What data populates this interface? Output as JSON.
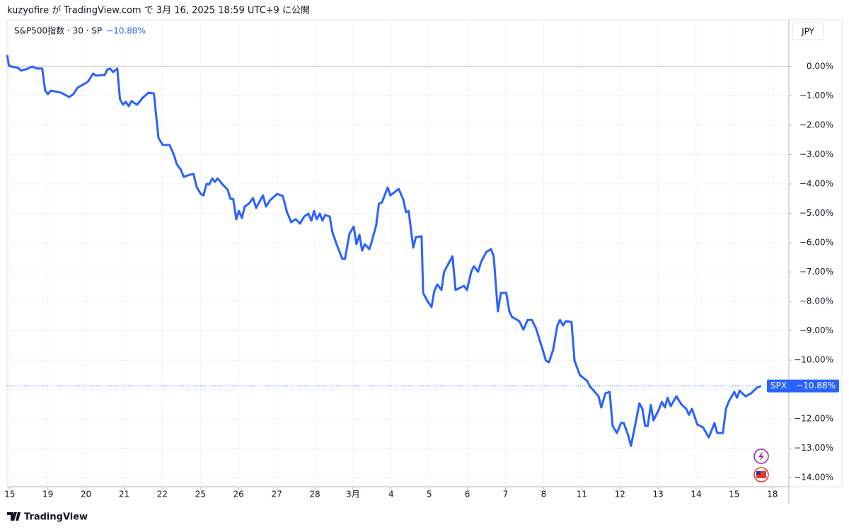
{
  "header": "kuzyofire が TradingView.com で 3月 16, 2025 18:59 UTC+9 に公開",
  "footer": "TradingView",
  "chart_data": {
    "type": "line",
    "legend": "S&P500指数 · 30 · SP",
    "currency": "JPY",
    "symbol": "SPX",
    "last_value": -10.88,
    "last_value_label": "−10.88%",
    "grid": true,
    "xlim": [
      -0.07,
      20.43
    ],
    "ylim": [
      -14.31,
      1.59
    ],
    "xticks": [
      {
        "value": 0,
        "label": "15"
      },
      {
        "value": 1,
        "label": "19"
      },
      {
        "value": 2,
        "label": "20"
      },
      {
        "value": 3,
        "label": "21"
      },
      {
        "value": 4,
        "label": "22"
      },
      {
        "value": 5,
        "label": "25"
      },
      {
        "value": 6,
        "label": "26"
      },
      {
        "value": 7,
        "label": "27"
      },
      {
        "value": 8,
        "label": "28"
      },
      {
        "value": 9,
        "label": "3月"
      },
      {
        "value": 10,
        "label": "4"
      },
      {
        "value": 11,
        "label": "5"
      },
      {
        "value": 12,
        "label": "6"
      },
      {
        "value": 13,
        "label": "7"
      },
      {
        "value": 14,
        "label": "8"
      },
      {
        "value": 15,
        "label": "11"
      },
      {
        "value": 16,
        "label": "12"
      },
      {
        "value": 17,
        "label": "13"
      },
      {
        "value": 18,
        "label": "14"
      },
      {
        "value": 19,
        "label": "15"
      },
      {
        "value": 20,
        "label": "18"
      }
    ],
    "yticks": [
      {
        "value": 0,
        "label": "0.00%"
      },
      {
        "value": -1,
        "label": "−1.00%"
      },
      {
        "value": -2,
        "label": "−2.00%"
      },
      {
        "value": -3,
        "label": "−3.00%"
      },
      {
        "value": -4,
        "label": "−4.00%"
      },
      {
        "value": -5,
        "label": "−5.00%"
      },
      {
        "value": -6,
        "label": "−6.00%"
      },
      {
        "value": -7,
        "label": "−7.00%"
      },
      {
        "value": -8,
        "label": "−8.00%"
      },
      {
        "value": -9,
        "label": "−9.00%"
      },
      {
        "value": -10,
        "label": "−10.00%"
      },
      {
        "value": -11,
        "label": "−11.00%"
      },
      {
        "value": -12,
        "label": "−12.00%"
      },
      {
        "value": -13,
        "label": "−13.00%"
      },
      {
        "value": -14,
        "label": "−14.00%"
      }
    ],
    "series": [
      {
        "name": "SPX",
        "color": "#2962ff",
        "x": [
          -0.07,
          -0.02,
          0.22,
          0.3,
          0.48,
          0.59,
          0.71,
          0.85,
          0.93,
          1.0,
          1.08,
          1.34,
          1.56,
          1.67,
          1.78,
          2.04,
          2.19,
          2.26,
          2.49,
          2.56,
          2.63,
          2.71,
          2.82,
          2.89,
          2.97,
          3.04,
          3.12,
          3.19,
          3.34,
          3.49,
          3.64,
          3.78,
          3.9,
          4.01,
          4.19,
          4.3,
          4.38,
          4.49,
          4.56,
          4.71,
          4.82,
          4.9,
          5.01,
          5.08,
          5.16,
          5.23,
          5.31,
          5.38,
          5.45,
          5.57,
          5.71,
          5.79,
          5.86,
          5.94,
          6.01,
          6.09,
          6.16,
          6.27,
          6.38,
          6.46,
          6.53,
          6.64,
          6.72,
          6.83,
          7.01,
          7.16,
          7.27,
          7.38,
          7.5,
          7.61,
          7.72,
          7.83,
          7.91,
          7.98,
          8.05,
          8.13,
          8.2,
          8.27,
          8.39,
          8.46,
          8.57,
          8.72,
          8.79,
          8.91,
          9.02,
          9.09,
          9.17,
          9.24,
          9.31,
          9.43,
          9.5,
          9.61,
          9.68,
          9.76,
          9.91,
          9.98,
          10.2,
          10.32,
          10.39,
          10.46,
          10.58,
          10.65,
          10.8,
          10.84,
          10.95,
          11.06,
          11.13,
          11.21,
          11.32,
          11.39,
          11.61,
          11.69,
          11.91,
          11.99,
          12.1,
          12.17,
          12.28,
          12.36,
          12.5,
          12.62,
          12.69,
          12.8,
          12.88,
          13.02,
          13.1,
          13.17,
          13.36,
          13.47,
          13.58,
          13.69,
          13.8,
          13.95,
          14.06,
          14.14,
          14.25,
          14.36,
          14.43,
          14.51,
          14.58,
          14.73,
          14.81,
          14.95,
          15.14,
          15.21,
          15.44,
          15.51,
          15.62,
          15.73,
          15.81,
          15.92,
          16.03,
          16.1,
          16.21,
          16.29,
          16.44,
          16.51,
          16.59,
          16.66,
          16.73,
          16.81,
          16.88,
          17.03,
          17.1,
          17.18,
          17.25,
          17.33,
          17.48,
          17.62,
          17.74,
          17.81,
          17.89,
          18.03,
          18.18,
          18.33,
          18.48,
          18.55,
          18.7,
          18.78,
          18.85,
          19.0,
          19.07,
          19.14,
          19.29,
          19.44,
          19.59,
          19.7
        ],
        "values": [
          0.39,
          0.02,
          -0.05,
          -0.14,
          -0.07,
          0.0,
          -0.07,
          -0.07,
          -0.82,
          -0.94,
          -0.82,
          -0.89,
          -1.04,
          -0.94,
          -0.72,
          -0.53,
          -0.24,
          -0.31,
          -0.29,
          -0.1,
          -0.07,
          -0.19,
          -0.07,
          -1.11,
          -1.3,
          -1.2,
          -1.35,
          -1.18,
          -1.3,
          -1.06,
          -0.89,
          -0.92,
          -2.43,
          -2.67,
          -2.67,
          -2.99,
          -3.33,
          -3.52,
          -3.76,
          -3.69,
          -3.66,
          -4.1,
          -4.34,
          -4.39,
          -4.0,
          -4.02,
          -3.81,
          -3.93,
          -3.81,
          -4.0,
          -4.19,
          -4.51,
          -4.51,
          -5.2,
          -4.92,
          -5.16,
          -4.77,
          -4.67,
          -4.48,
          -4.82,
          -4.65,
          -4.39,
          -4.77,
          -4.55,
          -4.34,
          -4.41,
          -4.96,
          -5.3,
          -5.2,
          -5.35,
          -5.11,
          -5.01,
          -5.25,
          -4.92,
          -5.2,
          -5.01,
          -5.25,
          -5.06,
          -5.11,
          -5.64,
          -6.05,
          -6.55,
          -6.55,
          -5.69,
          -5.45,
          -6.05,
          -5.73,
          -6.27,
          -6.05,
          -6.22,
          -5.93,
          -5.4,
          -4.67,
          -4.63,
          -4.12,
          -4.39,
          -4.17,
          -4.53,
          -4.96,
          -4.92,
          -6.17,
          -5.81,
          -5.78,
          -7.71,
          -7.98,
          -8.19,
          -7.66,
          -7.42,
          -7.61,
          -6.99,
          -6.46,
          -7.61,
          -7.47,
          -7.61,
          -6.99,
          -6.8,
          -6.99,
          -6.65,
          -6.31,
          -6.22,
          -6.46,
          -8.34,
          -7.71,
          -7.71,
          -8.34,
          -8.53,
          -8.67,
          -8.96,
          -8.63,
          -8.63,
          -8.92,
          -9.54,
          -10.02,
          -10.07,
          -9.64,
          -8.82,
          -8.63,
          -8.82,
          -8.67,
          -8.7,
          -10.02,
          -10.51,
          -10.7,
          -10.89,
          -11.23,
          -11.61,
          -11.13,
          -11.08,
          -12.24,
          -12.48,
          -12.14,
          -12.14,
          -12.53,
          -12.92,
          -11.95,
          -11.47,
          -11.66,
          -12.24,
          -12.24,
          -11.52,
          -12.05,
          -11.66,
          -11.42,
          -11.61,
          -11.28,
          -11.57,
          -11.23,
          -11.52,
          -11.66,
          -11.86,
          -11.66,
          -12.19,
          -12.29,
          -12.63,
          -12.14,
          -12.48,
          -12.48,
          -11.66,
          -11.42,
          -11.08,
          -11.28,
          -11.04,
          -11.23,
          -11.13,
          -10.94,
          -10.88
        ]
      }
    ]
  }
}
